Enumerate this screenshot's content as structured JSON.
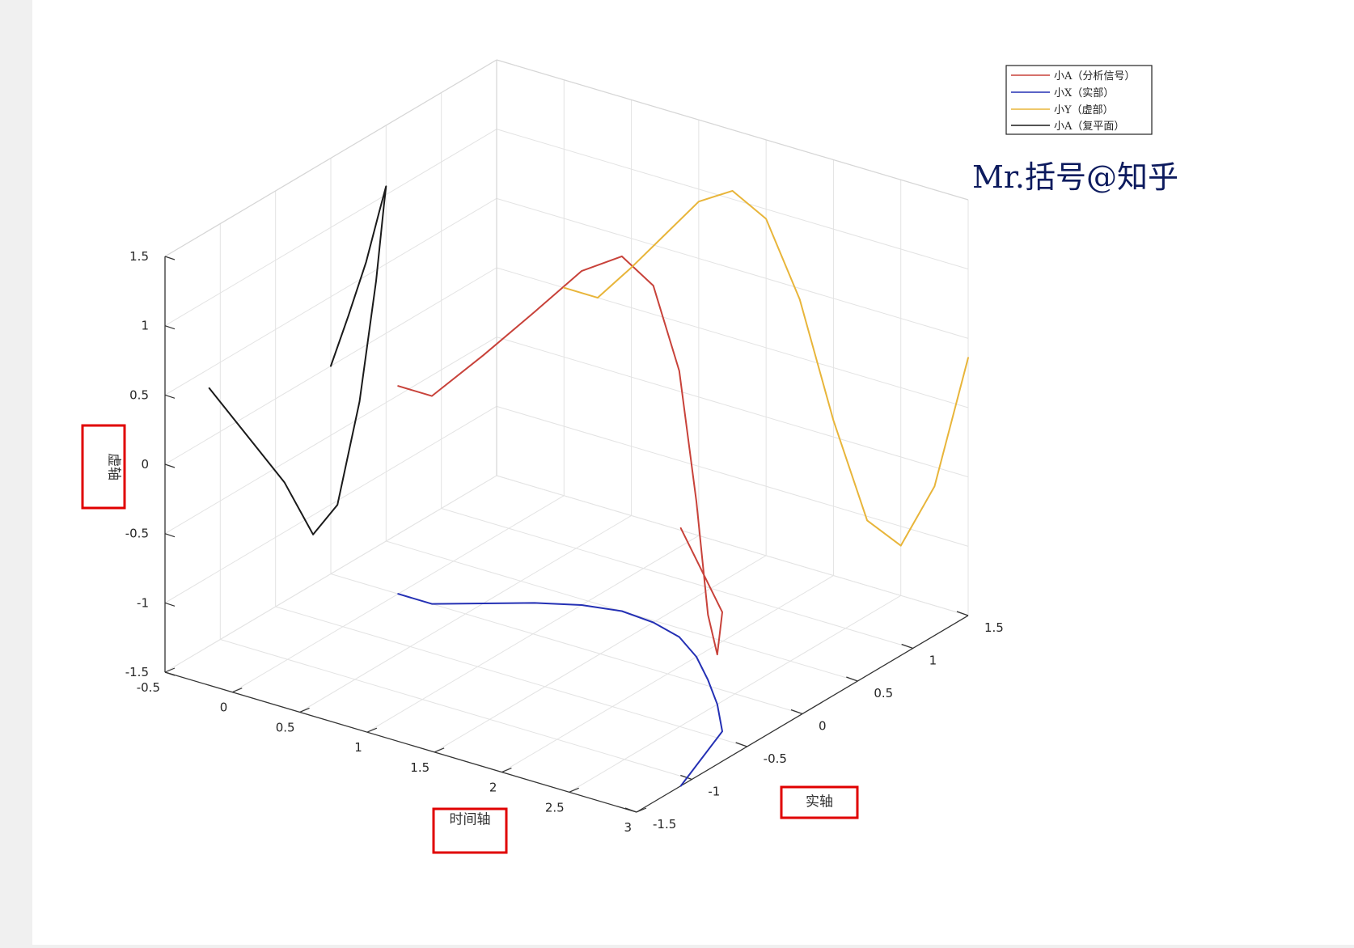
{
  "chart_data": {
    "type": "line",
    "projection": "3d",
    "xlabel": "时间轴",
    "ylabel": "实轴",
    "zlabel": "虚轴",
    "xlim": [
      -0.5,
      3
    ],
    "ylim": [
      -1.5,
      1.5
    ],
    "zlim": [
      -1.5,
      1.5
    ],
    "x_ticks": [
      "-0.5",
      "0",
      "0.5",
      "1",
      "1.5",
      "2",
      "2.5",
      "3"
    ],
    "y_ticks": [
      "-1.5",
      "-1",
      "-0.5",
      "0",
      "0.5",
      "1",
      "1.5"
    ],
    "z_ticks": [
      "-1.5",
      "-1",
      "-0.5",
      "0",
      "0.5",
      "1",
      "1.5"
    ],
    "grid": true,
    "box": true,
    "legend_position": "top-right",
    "highlighted_axis_labels": [
      "时间轴",
      "实轴",
      "虚轴"
    ],
    "highlight_color": "#e00000",
    "series": [
      {
        "name": "小A（分析信号）",
        "color": "#c8423a",
        "plane": "3d",
        "x": [
          0,
          0.25,
          0.5,
          0.75,
          1,
          1.25,
          1.5,
          1.75,
          2,
          2.25,
          2.5,
          2.75,
          3
        ],
        "y": [
          0.0,
          0.0,
          0.16,
          0.32,
          0.44,
          0.5,
          0.48,
          0.41,
          0.26,
          0.06,
          -0.16,
          -0.42,
          -1.1
        ],
        "z": [
          0.0,
          0.0,
          0.29,
          0.6,
          0.91,
          1.06,
          0.93,
          0.42,
          -0.38,
          -1.03,
          -1.14,
          -0.64,
          0.36
        ]
      },
      {
        "name": "小X（实部）",
        "color": "#2430b4",
        "plane": "xy",
        "x": [
          0,
          0.25,
          0.5,
          0.75,
          1,
          1.25,
          1.5,
          1.75,
          2,
          2.25,
          2.5,
          2.75,
          3
        ],
        "y": [
          0.0,
          0.0,
          0.16,
          0.32,
          0.44,
          0.5,
          0.48,
          0.41,
          0.26,
          0.06,
          -0.16,
          -0.42,
          -1.1
        ]
      },
      {
        "name": "小Y（虚部）",
        "color": "#e8b53a",
        "plane": "xz",
        "x": [
          0,
          0.25,
          0.5,
          0.75,
          1,
          1.25,
          1.5,
          1.75,
          2,
          2.25,
          2.5,
          2.75,
          3
        ],
        "z": [
          0.0,
          0.0,
          0.29,
          0.6,
          0.91,
          1.06,
          0.93,
          0.42,
          -0.38,
          -1.03,
          -1.14,
          -0.64,
          0.36
        ]
      },
      {
        "name": "小A（复平面）",
        "color": "#1a1a1a",
        "plane": "yz",
        "y": [
          0.0,
          0.0,
          0.16,
          0.32,
          0.44,
          0.5,
          0.48,
          0.41,
          0.26,
          0.06,
          -0.16,
          -0.42,
          -1.1
        ],
        "z": [
          0.0,
          0.0,
          0.29,
          0.6,
          0.91,
          1.06,
          0.93,
          0.42,
          -0.38,
          -1.03,
          -1.14,
          -0.64,
          0.36
        ]
      }
    ]
  },
  "watermark": "Mr.括号@知乎"
}
